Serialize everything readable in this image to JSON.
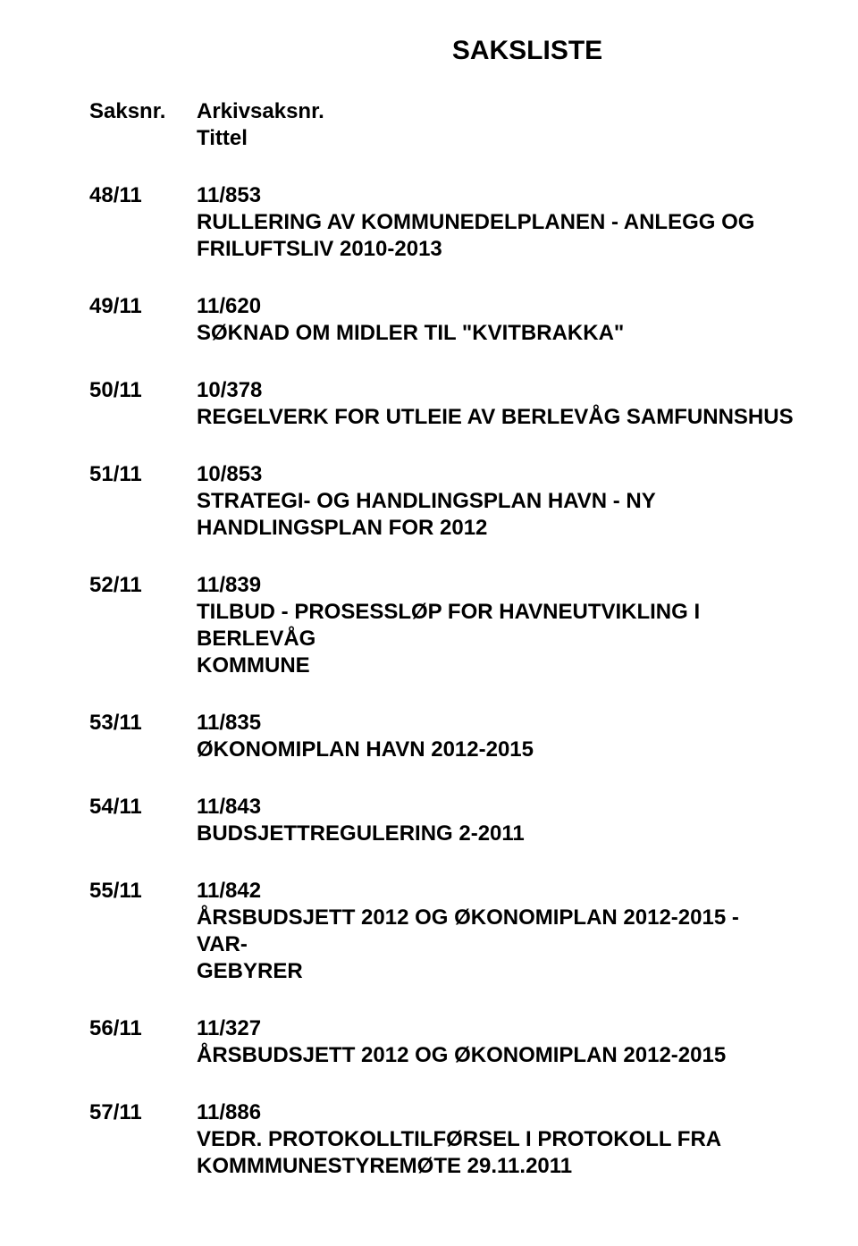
{
  "title": "SAKSLISTE",
  "header": {
    "left": "Saksnr.",
    "right_line1": "Arkivsaksnr.",
    "right_line2": "Tittel"
  },
  "items": [
    {
      "saksnr": "48/11",
      "arkiv": "11/853",
      "desc1": "RULLERING AV KOMMUNEDELPLANEN - ANLEGG OG",
      "desc2": "FRILUFTSLIV 2010-2013"
    },
    {
      "saksnr": "49/11",
      "arkiv": "11/620",
      "desc1": "SØKNAD OM MIDLER TIL \"KVITBRAKKA\""
    },
    {
      "saksnr": "50/11",
      "arkiv": "10/378",
      "desc1": "REGELVERK FOR UTLEIE AV BERLEVÅG SAMFUNNSHUS"
    },
    {
      "saksnr": "51/11",
      "arkiv": "10/853",
      "desc1": "STRATEGI- OG HANDLINGSPLAN HAVN - NY",
      "desc2": "HANDLINGSPLAN FOR 2012"
    },
    {
      "saksnr": "52/11",
      "arkiv": "11/839",
      "desc1": "TILBUD - PROSESSLØP FOR HAVNEUTVIKLING I BERLEVÅG",
      "desc2": "KOMMUNE"
    },
    {
      "saksnr": "53/11",
      "arkiv": "11/835",
      "desc1": "ØKONOMIPLAN HAVN 2012-2015"
    },
    {
      "saksnr": "54/11",
      "arkiv": "11/843",
      "desc1": "BUDSJETTREGULERING 2-2011"
    },
    {
      "saksnr": "55/11",
      "arkiv": "11/842",
      "desc1": "ÅRSBUDSJETT 2012 OG  ØKONOMIPLAN 2012-2015 - VAR-",
      "desc2": "GEBYRER"
    },
    {
      "saksnr": "56/11",
      "arkiv": "11/327",
      "desc1": "ÅRSBUDSJETT 2012 OG  ØKONOMIPLAN 2012-2015"
    },
    {
      "saksnr": "57/11",
      "arkiv": "11/886",
      "desc1": "VEDR. PROTOKOLLTILFØRSEL I PROTOKOLL FRA",
      "desc2": "KOMMMUNESTYREMØTE 29.11.2011"
    }
  ]
}
